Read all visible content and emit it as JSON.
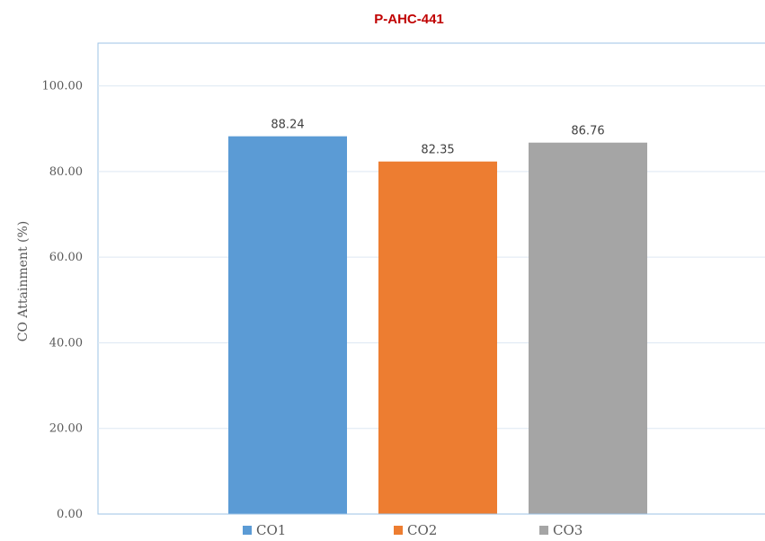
{
  "chart_data": {
    "type": "bar",
    "title": "P-AHC-441",
    "ylabel": "CO Attainment (%)",
    "xlabel": "",
    "ylim": [
      0,
      110
    ],
    "yticks": [
      "0.00",
      "20.00",
      "40.00",
      "60.00",
      "80.00",
      "100.00"
    ],
    "ytick_values": [
      0,
      20,
      40,
      60,
      80,
      100
    ],
    "grid": true,
    "legend_position": "bottom",
    "series": [
      {
        "name": "CO1",
        "value": 88.24,
        "label": "88.24",
        "color": "#5b9bd5"
      },
      {
        "name": "CO2",
        "value": 82.35,
        "label": "82.35",
        "color": "#ed7d31"
      },
      {
        "name": "CO3",
        "value": 86.76,
        "label": "86.76",
        "color": "#a5a5a5"
      }
    ]
  },
  "colors": {
    "title": "#c00000",
    "axis": "#9dc3e6",
    "grid": "#dde8f3",
    "frame": "#9dc3e6"
  }
}
